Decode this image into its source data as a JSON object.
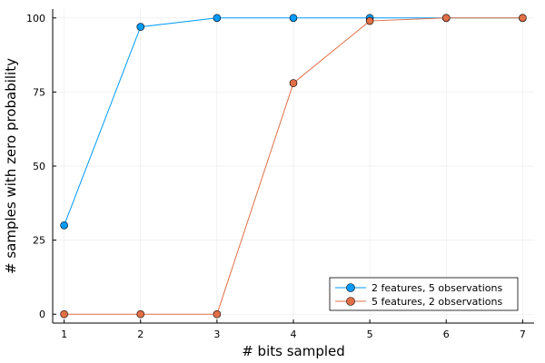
{
  "chart_data": {
    "type": "line",
    "xlabel": "# bits sampled",
    "ylabel": "# samples with zero probability",
    "xlim": [
      1,
      7
    ],
    "ylim": [
      0,
      100
    ],
    "x_ticks": [
      1,
      2,
      3,
      4,
      5,
      6,
      7
    ],
    "y_ticks": [
      0,
      25,
      50,
      75,
      100
    ],
    "grid": true,
    "legend_position": "bottom-right",
    "x": [
      1,
      2,
      3,
      4,
      5,
      6,
      7
    ],
    "series": [
      {
        "name": "2 features, 5 observations",
        "color": "#009AFA",
        "values": [
          30,
          97,
          100,
          100,
          100,
          100,
          100
        ]
      },
      {
        "name": "5 features, 2 observations",
        "color": "#E26F46",
        "values": [
          0,
          0,
          0,
          78,
          99,
          100,
          100
        ]
      }
    ]
  }
}
